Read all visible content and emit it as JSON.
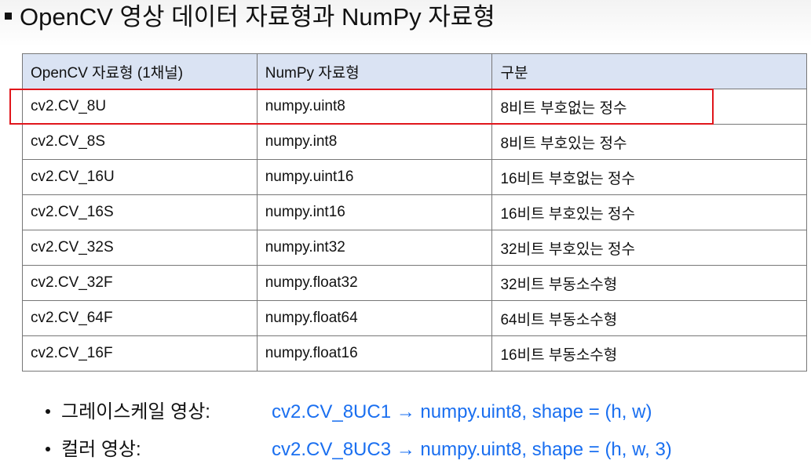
{
  "title": "OpenCV 영상 데이터 자료형과 NumPy 자료형",
  "table": {
    "headers": [
      "OpenCV 자료형 (1채널)",
      "NumPy 자료형",
      "구분"
    ],
    "rows": [
      [
        "cv2.CV_8U",
        "numpy.uint8",
        "8비트 부호없는 정수"
      ],
      [
        "cv2.CV_8S",
        "numpy.int8",
        "8비트 부호있는 정수"
      ],
      [
        "cv2.CV_16U",
        "numpy.uint16",
        "16비트 부호없는 정수"
      ],
      [
        "cv2.CV_16S",
        "numpy.int16",
        "16비트 부호있는 정수"
      ],
      [
        "cv2.CV_32S",
        "numpy.int32",
        "32비트 부호있는 정수"
      ],
      [
        "cv2.CV_32F",
        "numpy.float32",
        "32비트 부동소수형"
      ],
      [
        "cv2.CV_64F",
        "numpy.float64",
        "64비트 부동소수형"
      ],
      [
        "cv2.CV_16F",
        "numpy.float16",
        "16비트 부동소수형"
      ]
    ],
    "highlighted_row": 0,
    "header_bg": "#dae3f3",
    "highlight_color": "#e0161c"
  },
  "bullets": [
    {
      "label": "그레이스케일 영상:",
      "code": "cv2.CV_8UC1 → numpy.uint8, shape = (h, w)"
    },
    {
      "label": "컬러 영상:",
      "code": "cv2.CV_8UC3 → numpy.uint8, shape = (h, w, 3)"
    }
  ],
  "code_color": "#1a6ff0"
}
